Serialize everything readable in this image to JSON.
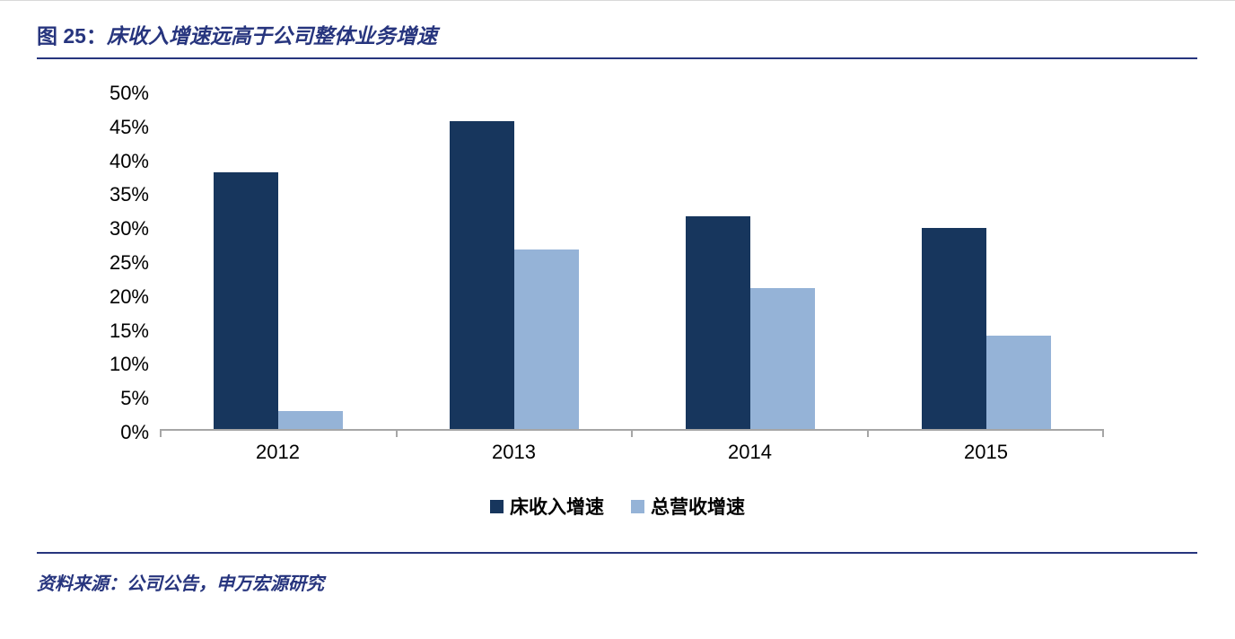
{
  "figure": {
    "label": "图 25：",
    "title": "床收入增速远高于公司整体业务增速"
  },
  "source": {
    "text": "资料来源：公司公告，申万宏源研究"
  },
  "colors": {
    "navy": "#27357E",
    "bar_dark": "#17365D",
    "bar_light": "#95B3D7",
    "axis_gray": "#A6A6A6"
  },
  "chart_data": {
    "type": "bar",
    "title": "床收入增速远高于公司整体业务增速",
    "categories": [
      "2012",
      "2013",
      "2014",
      "2015"
    ],
    "series": [
      {
        "name": "床收入增速",
        "color": "#17365D",
        "values": [
          37.8,
          45.4,
          31.4,
          29.7
        ]
      },
      {
        "name": "总营收增速",
        "color": "#95B3D7",
        "values": [
          2.7,
          26.5,
          20.8,
          13.7
        ]
      }
    ],
    "xlabel": "",
    "ylabel": "",
    "ylim": [
      0,
      50
    ],
    "ytick_step": 5,
    "ytick_format": "percent",
    "grid": false,
    "legend_position": "bottom"
  }
}
